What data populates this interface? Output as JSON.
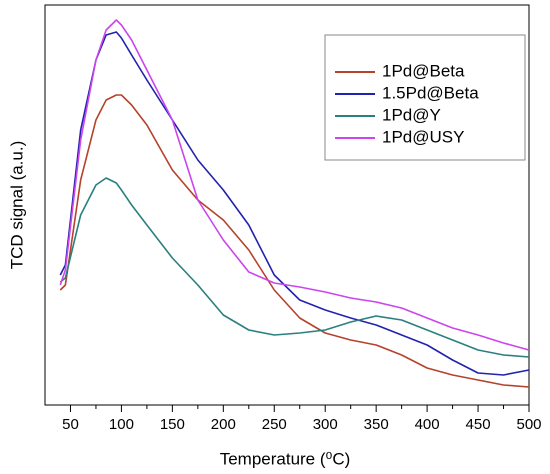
{
  "chart_data": {
    "type": "line",
    "xlabel": "Temperature (⁰C)",
    "ylabel": "TCD signal (a.u.)",
    "x": [
      40,
      45,
      60,
      75,
      85,
      95,
      100,
      110,
      125,
      150,
      175,
      200,
      225,
      250,
      275,
      300,
      325,
      350,
      375,
      400,
      425,
      450,
      475,
      500
    ],
    "series": [
      {
        "name": "1Pd@Beta",
        "color": "#b5422b",
        "values": [
          28.75,
          30,
          56.25,
          71.25,
          76.25,
          77.5,
          77.5,
          75,
          70,
          58.75,
          51.25,
          46.25,
          38.75,
          28.75,
          21.75,
          18,
          16.25,
          15,
          12.5,
          9.25,
          7.5,
          6.25,
          5,
          4.5
        ]
      },
      {
        "name": "1.5Pd@Beta",
        "color": "#2222b0",
        "values": [
          32.5,
          35,
          68.75,
          86.25,
          92.5,
          93.25,
          91.75,
          87.5,
          81.25,
          71.25,
          61.25,
          53.75,
          45,
          32.5,
          26.25,
          23.75,
          21.75,
          20,
          17.5,
          15,
          11.25,
          8,
          7.5,
          8.75
        ]
      },
      {
        "name": "1Pd@Y",
        "color": "#2a7f80",
        "values": [
          30.75,
          31.75,
          47.5,
          55,
          56.75,
          55.5,
          53.75,
          50,
          45,
          36.75,
          30,
          22.5,
          18.75,
          17.5,
          18,
          18.75,
          20.75,
          22.25,
          21.25,
          18.75,
          16.25,
          13.75,
          12.5,
          12
        ]
      },
      {
        "name": "1Pd@USY",
        "color": "#cc44ee",
        "values": [
          30,
          33.75,
          66.25,
          86.25,
          93.75,
          96.25,
          95,
          91.25,
          83.75,
          71.25,
          51.25,
          41.25,
          33.25,
          30.5,
          29.5,
          28.25,
          26.75,
          25.75,
          24.25,
          21.75,
          19.25,
          17.5,
          15.5,
          13.75
        ]
      }
    ],
    "xlim": [
      25,
      500
    ],
    "xticks": [
      50,
      100,
      150,
      200,
      250,
      300,
      350,
      400,
      450,
      500
    ],
    "ylim": [
      0,
      100
    ],
    "legend": "upper right"
  }
}
